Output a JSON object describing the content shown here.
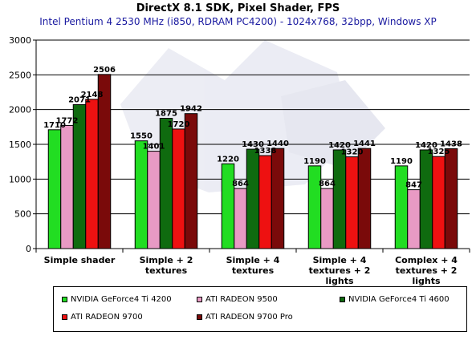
{
  "chart_data": {
    "type": "bar",
    "title": "DirectX 8.1 SDK, Pixel Shader, FPS",
    "subtitle": "Intel Pentium 4 2530 MHz (i850, RDRAM PC4200) - 1024x768, 32bpp, Windows XP",
    "categories": [
      [
        "Simple shader"
      ],
      [
        "Simple + 2",
        "textures"
      ],
      [
        "Simple + 4",
        "textures"
      ],
      [
        "Simple + 4",
        "textures + 2",
        "lights"
      ],
      [
        "Complex + 4",
        "textures + 2",
        "lights"
      ]
    ],
    "ylim": [
      0,
      3000
    ],
    "yticks": [
      0,
      500,
      1000,
      1500,
      2000,
      2500,
      3000
    ],
    "grid": true,
    "legend_position": "bottom",
    "series": [
      {
        "name": "NVIDIA GeForce4 Ti 4200",
        "color": "#22dd22",
        "values": [
          1710,
          1550,
          1220,
          1190,
          1190
        ]
      },
      {
        "name": "ATI RADEON 9500",
        "color": "#e89ac4",
        "values": [
          1772,
          1401,
          864,
          864,
          847
        ]
      },
      {
        "name": "NVIDIA GeForce4 Ti 4600",
        "color": "#0f6b0f",
        "values": [
          2071,
          1875,
          1430,
          1420,
          1420
        ]
      },
      {
        "name": "ATI RADEON 9700",
        "color": "#ee1111",
        "values": [
          2148,
          1720,
          1338,
          1320,
          1325
        ]
      },
      {
        "name": "ATI RADEON 9700 Pro",
        "color": "#7a0a0a",
        "values": [
          2506,
          1942,
          1440,
          1441,
          1438
        ]
      }
    ]
  }
}
